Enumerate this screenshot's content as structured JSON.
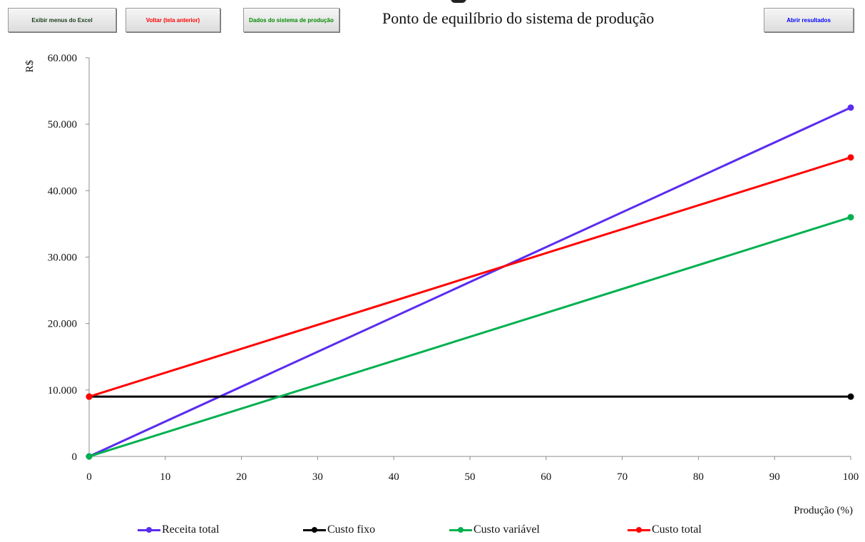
{
  "toolbar": {
    "excel_label": "Exibir menus do Excel",
    "back_label": "Voltar (tela anterior)",
    "data_label": "Dados do sistema de produção",
    "results_label": "Abrir resultados"
  },
  "chart_data": {
    "type": "line",
    "title": "Ponto de equilíbrio do sistema de produção",
    "xlabel": "Produção (%)",
    "ylabel": "R$",
    "xlim": [
      0,
      100
    ],
    "ylim": [
      0,
      60000
    ],
    "xticks": [
      0,
      10,
      20,
      30,
      40,
      50,
      60,
      70,
      80,
      90,
      100
    ],
    "yticks": [
      0,
      10000,
      20000,
      30000,
      40000,
      50000,
      60000
    ],
    "ytick_labels": [
      "0",
      "10.000",
      "20.000",
      "30.000",
      "40.000",
      "50.000",
      "60.000"
    ],
    "grid": false,
    "legend_position": "bottom",
    "series": [
      {
        "name": "Receita total",
        "color": "#5a2cf0",
        "x": [
          0,
          100
        ],
        "y": [
          0,
          52500
        ]
      },
      {
        "name": "Custo fixo",
        "color": "#000000",
        "x": [
          0,
          100
        ],
        "y": [
          9000,
          9000
        ]
      },
      {
        "name": "Custo variável",
        "color": "#00b050",
        "x": [
          0,
          100
        ],
        "y": [
          0,
          36000
        ]
      },
      {
        "name": "Custo total",
        "color": "#ff0000",
        "x": [
          0,
          100
        ],
        "y": [
          9000,
          45000
        ]
      }
    ]
  }
}
